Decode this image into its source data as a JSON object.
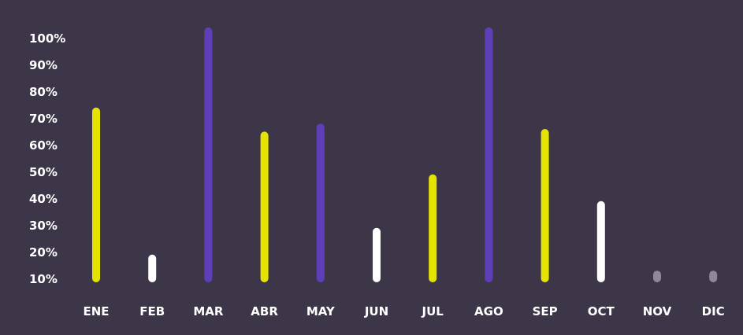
{
  "colors": {
    "background": "#3d3649",
    "yellow": "#e4e400",
    "purple": "#5e3fb8",
    "white": "#ffffff",
    "gray": "#8e8898",
    "text": "#ffffff"
  },
  "chart_data": {
    "type": "bar",
    "categories": [
      "ENE",
      "FEB",
      "MAR",
      "ABR",
      "MAY",
      "JUN",
      "JUL",
      "AGO",
      "SEP",
      "OCT",
      "NOV",
      "DIC"
    ],
    "values": [
      73,
      18,
      103,
      64,
      67,
      28,
      48,
      103,
      65,
      38,
      12,
      12
    ],
    "bar_colors": [
      "yellow",
      "white",
      "purple",
      "yellow",
      "purple",
      "white",
      "yellow",
      "purple",
      "yellow",
      "white",
      "gray",
      "gray"
    ],
    "y_ticks": [
      "10%",
      "20%",
      "30%",
      "40%",
      "50%",
      "60%",
      "70%",
      "80%",
      "90%",
      "100%"
    ],
    "ylim": [
      10,
      100
    ],
    "grid": false,
    "legend": "none"
  }
}
